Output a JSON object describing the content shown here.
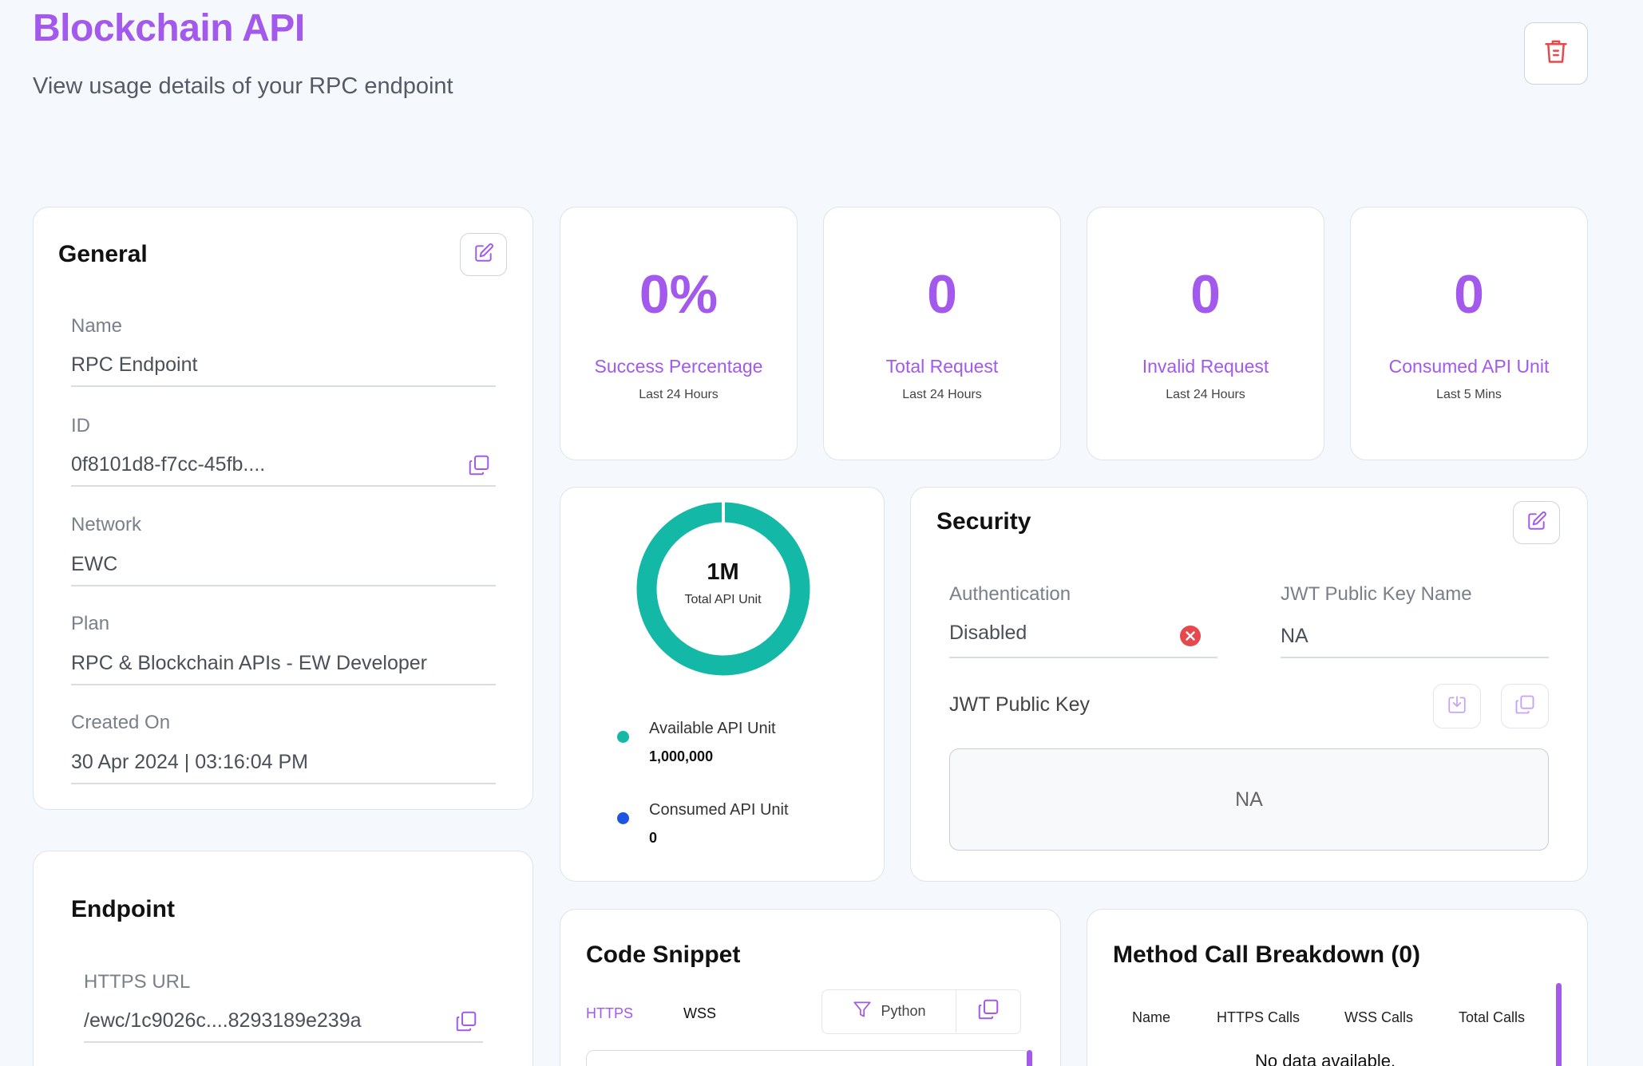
{
  "header": {
    "title": "Blockchain API",
    "subtitle": "View usage details of your RPC endpoint",
    "delete_icon": "trash-icon"
  },
  "general": {
    "title": "General",
    "edit_icon": "edit-icon",
    "fields": [
      {
        "label": "Name",
        "value": "RPC Endpoint"
      },
      {
        "label": "ID",
        "value": "0f8101d8-f7cc-45fb...."
      },
      {
        "label": "Network",
        "value": "EWC"
      },
      {
        "label": "Plan",
        "value": "RPC & Blockchain APIs - EW Developer"
      },
      {
        "label": "Created On",
        "value": "30 Apr 2024 | 03:16:04 PM"
      }
    ]
  },
  "stats": [
    {
      "value": "0%",
      "label": "Success Percentage",
      "sub": "Last 24 Hours"
    },
    {
      "value": "0",
      "label": "Total Request",
      "sub": "Last 24 Hours"
    },
    {
      "value": "0",
      "label": "Invalid Request",
      "sub": "Last 24 Hours"
    },
    {
      "value": "0",
      "label": "Consumed API Unit",
      "sub": "Last 5 Mins"
    }
  ],
  "usage": {
    "total_value": "1M",
    "total_label": "Total API Unit",
    "available_label": "Available API Unit",
    "available_value": "1,000,000",
    "consumed_label": "Consumed API Unit",
    "consumed_value": "0",
    "available_fraction": 1.0,
    "consumed_fraction": 0.0,
    "colors": {
      "available": "#13b8a6",
      "consumed": "#1b55e2"
    }
  },
  "security": {
    "title": "Security",
    "auth_label": "Authentication",
    "auth_value": "Disabled",
    "jwt_name_label": "JWT Public Key Name",
    "jwt_name_value": "NA",
    "jwt_key_label": "JWT Public Key",
    "jwt_key_value": "NA"
  },
  "endpoint": {
    "title": "Endpoint",
    "https_label": "HTTPS URL",
    "https_value": "/ewc/1c9026c....8293189e239a"
  },
  "code_snippet": {
    "title": "Code Snippet",
    "tabs": [
      "HTTPS",
      "WSS"
    ],
    "active_tab": "HTTPS",
    "language": "Python"
  },
  "method_breakdown": {
    "title": "Method Call Breakdown (0)",
    "columns": [
      "Name",
      "HTTPS Calls",
      "WSS Calls",
      "Total Calls"
    ],
    "empty_text": "No data available."
  },
  "colors": {
    "accent": "#a259ec",
    "danger": "#e5484d",
    "background": "#f5f8fd"
  }
}
